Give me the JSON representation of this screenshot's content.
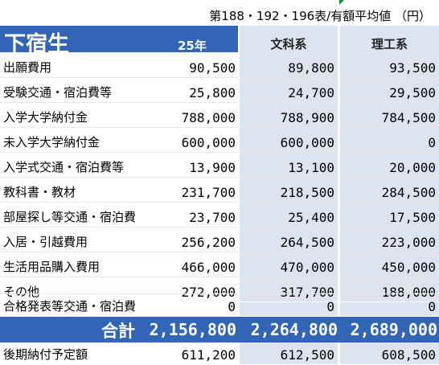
{
  "caption": "第188・192・196表/有額平均値 （円）",
  "header": {
    "title": "下宿生",
    "col_2": "25年",
    "col_3": "文科系",
    "col_4": "理工系"
  },
  "rows": [
    {
      "label": "出願費用",
      "v2": "90,500",
      "v3": "89,800",
      "v4": "93,500"
    },
    {
      "label": "受験交通・宿泊費等",
      "v2": "25,800",
      "v3": "24,700",
      "v4": "29,500"
    },
    {
      "label": "入学大学納付金",
      "v2": "788,000",
      "v3": "788,900",
      "v4": "784,500"
    },
    {
      "label": "未入学大学納付金",
      "v2": "600,000",
      "v3": "600,000",
      "v4": "0"
    },
    {
      "label": "入学式交通・宿泊費等",
      "v2": "13,900",
      "v3": "13,100",
      "v4": "20,000"
    },
    {
      "label": "教科書・教材",
      "v2": "231,700",
      "v3": "218,500",
      "v4": "284,500"
    },
    {
      "label": "部屋探し等交通・宿泊費",
      "v2": "23,700",
      "v3": "25,400",
      "v4": "17,500"
    },
    {
      "label": "入居・引越費用",
      "v2": "256,200",
      "v3": "264,500",
      "v4": "223,000"
    },
    {
      "label": "生活用品購入費用",
      "v2": "466,000",
      "v3": "470,000",
      "v4": "450,000"
    },
    {
      "label": "その他",
      "v2": "272,000",
      "v3": "317,700",
      "v4": "188,000"
    },
    {
      "label": "合格発表等交通・宿泊費",
      "v2": "0",
      "v3": "0",
      "v4": "0"
    }
  ],
  "total": {
    "label": "合計",
    "v2": "2,156,800",
    "v3": "2,264,800",
    "v4": "2,689,000"
  },
  "after": {
    "label": "後期納付予定額",
    "v2": "611,200",
    "v3": "612,500",
    "v4": "608,500"
  },
  "colors": {
    "header_blue": "#3265b6",
    "column_tint": "#dde3ef",
    "flag_green": "#1e8e3e"
  }
}
